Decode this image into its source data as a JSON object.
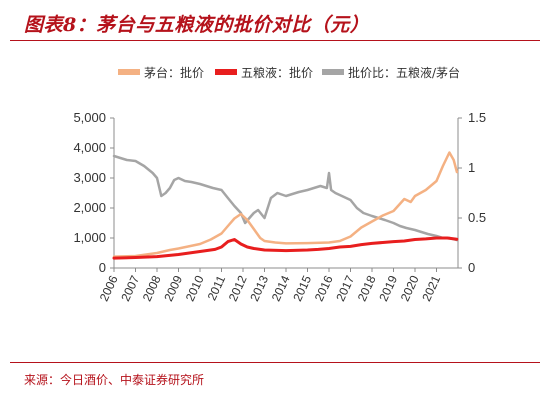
{
  "title": "图表8：茅台与五粮液的批价对比（元）",
  "source": "来源：今日酒价、中泰证券研究所",
  "colors": {
    "accent": "#b5121b",
    "moutai": "#f4b183",
    "wuliangye": "#e81e1e",
    "ratio": "#a5a5a5"
  },
  "chart_data": {
    "type": "line",
    "title": "图表8：茅台与五粮液的批价对比（元）",
    "legend_position": "top",
    "grid": false,
    "x_ticks": [
      "2006",
      "2007",
      "2008",
      "2009",
      "2010",
      "2011",
      "2012",
      "2013",
      "2014",
      "2015",
      "2016",
      "2017",
      "2018",
      "2019",
      "2020",
      "2021"
    ],
    "xlim": [
      2006,
      2022
    ],
    "y_left": {
      "lim": [
        0,
        5000
      ],
      "ticks": [
        "0",
        "1,000",
        "2,000",
        "3,000",
        "4,000",
        "5,000"
      ],
      "tick_values": [
        0,
        1000,
        2000,
        3000,
        4000,
        5000
      ]
    },
    "y_right": {
      "lim": [
        0,
        1.5
      ],
      "ticks": [
        "0",
        "0.5",
        "1",
        "1.5"
      ],
      "tick_values": [
        0,
        0.5,
        1,
        1.5
      ]
    },
    "series": [
      {
        "name": "茅台：批价",
        "axis": "left",
        "color": "#f4b183",
        "x": [
          2006.0,
          2007.0,
          2008.0,
          2008.6,
          2009.0,
          2010.0,
          2010.5,
          2011.0,
          2011.3,
          2011.6,
          2011.9,
          2012.2,
          2012.5,
          2012.8,
          2013.0,
          2013.5,
          2014.0,
          2015.0,
          2016.0,
          2016.5,
          2017.0,
          2017.5,
          2018.0,
          2018.5,
          2019.0,
          2019.5,
          2019.8,
          2020.0,
          2020.5,
          2021.0,
          2021.3,
          2021.6,
          2021.8,
          2021.95
        ],
        "y": [
          380,
          400,
          500,
          600,
          650,
          800,
          950,
          1150,
          1400,
          1650,
          1800,
          1600,
          1300,
          1000,
          900,
          850,
          820,
          830,
          850,
          900,
          1050,
          1350,
          1550,
          1750,
          1900,
          2300,
          2200,
          2400,
          2600,
          2900,
          3400,
          3850,
          3600,
          3200
        ]
      },
      {
        "name": "五粮液：批价",
        "axis": "left",
        "color": "#e81e1e",
        "x": [
          2006.0,
          2007.0,
          2008.0,
          2009.0,
          2010.0,
          2010.7,
          2011.0,
          2011.3,
          2011.6,
          2011.9,
          2012.2,
          2012.5,
          2013.0,
          2014.0,
          2015.0,
          2015.5,
          2016.0,
          2016.5,
          2017.0,
          2017.5,
          2018.0,
          2018.5,
          2019.0,
          2019.5,
          2020.0,
          2020.5,
          2021.0,
          2021.5,
          2021.95
        ],
        "y": [
          330,
          350,
          380,
          450,
          550,
          620,
          700,
          880,
          950,
          800,
          700,
          650,
          600,
          580,
          600,
          620,
          650,
          700,
          720,
          780,
          820,
          850,
          880,
          900,
          950,
          970,
          1000,
          1000,
          960
        ]
      },
      {
        "name": "批价比：五粮液/茅台",
        "axis": "right",
        "color": "#a5a5a5",
        "x": [
          2006.0,
          2006.3,
          2006.6,
          2007.0,
          2007.4,
          2007.8,
          2008.0,
          2008.2,
          2008.4,
          2008.6,
          2008.8,
          2009.0,
          2009.3,
          2009.6,
          2010.0,
          2010.3,
          2010.6,
          2011.0,
          2011.3,
          2011.6,
          2011.9,
          2012.1,
          2012.3,
          2012.5,
          2012.7,
          2013.0,
          2013.3,
          2013.6,
          2014.0,
          2014.3,
          2014.6,
          2015.0,
          2015.3,
          2015.6,
          2015.9,
          2016.0,
          2016.1,
          2016.3,
          2016.6,
          2017.0,
          2017.3,
          2017.6,
          2018.0,
          2018.3,
          2018.6,
          2019.0,
          2019.3,
          2019.6,
          2020.0,
          2020.3,
          2020.6,
          2021.0,
          2021.3,
          2021.6,
          2021.95
        ],
        "y": [
          1.12,
          1.1,
          1.08,
          1.07,
          1.02,
          0.95,
          0.9,
          0.72,
          0.75,
          0.8,
          0.88,
          0.9,
          0.87,
          0.86,
          0.84,
          0.82,
          0.8,
          0.78,
          0.7,
          0.62,
          0.55,
          0.45,
          0.5,
          0.55,
          0.58,
          0.5,
          0.7,
          0.75,
          0.72,
          0.74,
          0.76,
          0.78,
          0.8,
          0.82,
          0.8,
          0.95,
          0.78,
          0.75,
          0.72,
          0.68,
          0.6,
          0.55,
          0.52,
          0.5,
          0.48,
          0.45,
          0.42,
          0.4,
          0.38,
          0.36,
          0.34,
          0.32,
          0.3,
          0.3,
          0.28
        ]
      }
    ]
  }
}
